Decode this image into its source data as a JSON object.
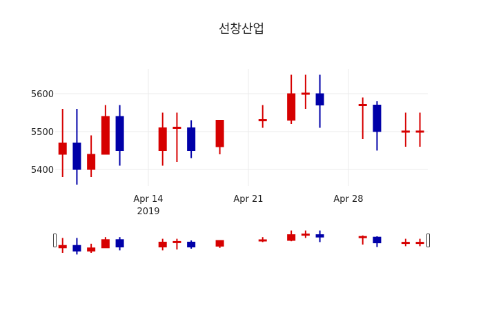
{
  "chart_data": {
    "type": "candlestick",
    "title": "선창산업",
    "xlabel": "",
    "ylabel": "",
    "ylim": [
      5355,
      5655
    ],
    "yticks": [
      5400,
      5500,
      5600
    ],
    "ytick_labels": [
      "5400",
      "5500",
      "5600"
    ],
    "xticks": [
      "2019-04-14",
      "2019-04-21",
      "2019-04-28"
    ],
    "xtick_labels": [
      "Apr 14\n2019",
      "Apr 21",
      "Apr 28"
    ],
    "grid": true,
    "increasing_color": "#d60000",
    "decreasing_color": "#0000a8",
    "rangeslider": true,
    "candles": [
      {
        "date": "2019-04-08",
        "open": 5440,
        "high": 5560,
        "low": 5380,
        "close": 5470
      },
      {
        "date": "2019-04-09",
        "open": 5470,
        "high": 5560,
        "low": 5360,
        "close": 5400
      },
      {
        "date": "2019-04-10",
        "open": 5400,
        "high": 5490,
        "low": 5380,
        "close": 5440
      },
      {
        "date": "2019-04-11",
        "open": 5440,
        "high": 5570,
        "low": 5440,
        "close": 5540
      },
      {
        "date": "2019-04-12",
        "open": 5540,
        "high": 5570,
        "low": 5410,
        "close": 5450
      },
      {
        "date": "2019-04-15",
        "open": 5450,
        "high": 5550,
        "low": 5410,
        "close": 5510
      },
      {
        "date": "2019-04-16",
        "open": 5510,
        "high": 5550,
        "low": 5420,
        "close": 5510
      },
      {
        "date": "2019-04-17",
        "open": 5510,
        "high": 5530,
        "low": 5430,
        "close": 5450
      },
      {
        "date": "2019-04-19",
        "open": 5460,
        "high": 5530,
        "low": 5440,
        "close": 5530
      },
      {
        "date": "2019-04-22",
        "open": 5530,
        "high": 5570,
        "low": 5510,
        "close": 5530
      },
      {
        "date": "2019-04-24",
        "open": 5530,
        "high": 5650,
        "low": 5520,
        "close": 5600
      },
      {
        "date": "2019-04-25",
        "open": 5600,
        "high": 5650,
        "low": 5560,
        "close": 5600
      },
      {
        "date": "2019-04-26",
        "open": 5600,
        "high": 5650,
        "low": 5510,
        "close": 5570
      },
      {
        "date": "2019-04-29",
        "open": 5570,
        "high": 5590,
        "low": 5480,
        "close": 5570
      },
      {
        "date": "2019-04-30",
        "open": 5570,
        "high": 5580,
        "low": 5450,
        "close": 5500
      },
      {
        "date": "2019-05-02",
        "open": 5500,
        "high": 5550,
        "low": 5460,
        "close": 5500
      },
      {
        "date": "2019-05-03",
        "open": 5500,
        "high": 5550,
        "low": 5460,
        "close": 5500
      }
    ]
  }
}
